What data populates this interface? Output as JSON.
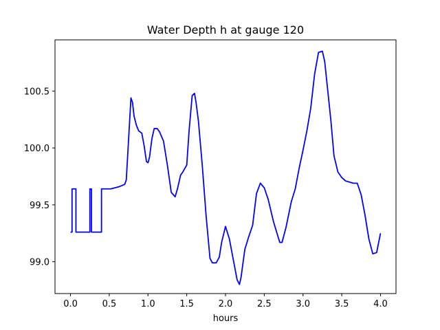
{
  "chart_data": {
    "type": "line",
    "title": "Water Depth h at gauge 120",
    "xlabel": "hours",
    "ylabel": "",
    "xlim": [
      -0.2,
      4.2
    ],
    "ylim": [
      98.72,
      100.95
    ],
    "xticks": [
      0.0,
      0.5,
      1.0,
      1.5,
      2.0,
      2.5,
      3.0,
      3.5,
      4.0
    ],
    "xtick_labels": [
      "0.0",
      "0.5",
      "1.0",
      "1.5",
      "2.0",
      "2.5",
      "3.0",
      "3.5",
      "4.0"
    ],
    "yticks": [
      99.0,
      99.5,
      100.0,
      100.5
    ],
    "ytick_labels": [
      "99.0",
      "99.5",
      "100.0",
      "100.5"
    ],
    "grid": false,
    "series": [
      {
        "color": "#0000ff",
        "x": [
          0.0,
          0.02,
          0.02,
          0.07,
          0.07,
          0.25,
          0.25,
          0.27,
          0.27,
          0.4,
          0.4,
          0.52,
          0.63,
          0.7,
          0.72,
          0.76,
          0.78,
          0.8,
          0.82,
          0.85,
          0.88,
          0.92,
          0.95,
          0.98,
          1.0,
          1.02,
          1.05,
          1.08,
          1.12,
          1.15,
          1.2,
          1.25,
          1.3,
          1.35,
          1.38,
          1.42,
          1.45,
          1.5,
          1.53,
          1.57,
          1.6,
          1.62,
          1.65,
          1.7,
          1.75,
          1.8,
          1.83,
          1.88,
          1.92,
          1.95,
          2.0,
          2.05,
          2.1,
          2.15,
          2.18,
          2.2,
          2.25,
          2.3,
          2.35,
          2.4,
          2.45,
          2.5,
          2.55,
          2.62,
          2.7,
          2.73,
          2.78,
          2.85,
          2.9,
          2.95,
          3.0,
          3.05,
          3.1,
          3.15,
          3.2,
          3.25,
          3.28,
          3.32,
          3.36,
          3.4,
          3.45,
          3.5,
          3.55,
          3.6,
          3.65,
          3.7,
          3.75,
          3.8,
          3.85,
          3.9,
          3.95,
          4.0
        ],
        "y": [
          99.26,
          99.26,
          99.64,
          99.64,
          99.26,
          99.26,
          99.64,
          99.64,
          99.26,
          99.26,
          99.64,
          99.64,
          99.66,
          99.68,
          99.72,
          100.2,
          100.44,
          100.4,
          100.28,
          100.2,
          100.15,
          100.13,
          100.02,
          99.88,
          99.87,
          99.92,
          100.08,
          100.17,
          100.17,
          100.14,
          100.06,
          99.85,
          99.61,
          99.57,
          99.64,
          99.76,
          99.79,
          99.85,
          100.15,
          100.46,
          100.48,
          100.4,
          100.24,
          99.85,
          99.4,
          99.03,
          98.99,
          98.99,
          99.04,
          99.17,
          99.31,
          99.2,
          99.02,
          98.84,
          98.8,
          98.86,
          99.11,
          99.22,
          99.32,
          99.6,
          99.69,
          99.65,
          99.55,
          99.35,
          99.17,
          99.17,
          99.3,
          99.53,
          99.64,
          99.82,
          99.98,
          100.15,
          100.35,
          100.65,
          100.84,
          100.85,
          100.76,
          100.5,
          100.24,
          99.93,
          99.79,
          99.74,
          99.71,
          99.7,
          99.69,
          99.69,
          99.59,
          99.41,
          99.2,
          99.07,
          99.08,
          99.25
        ]
      }
    ]
  }
}
